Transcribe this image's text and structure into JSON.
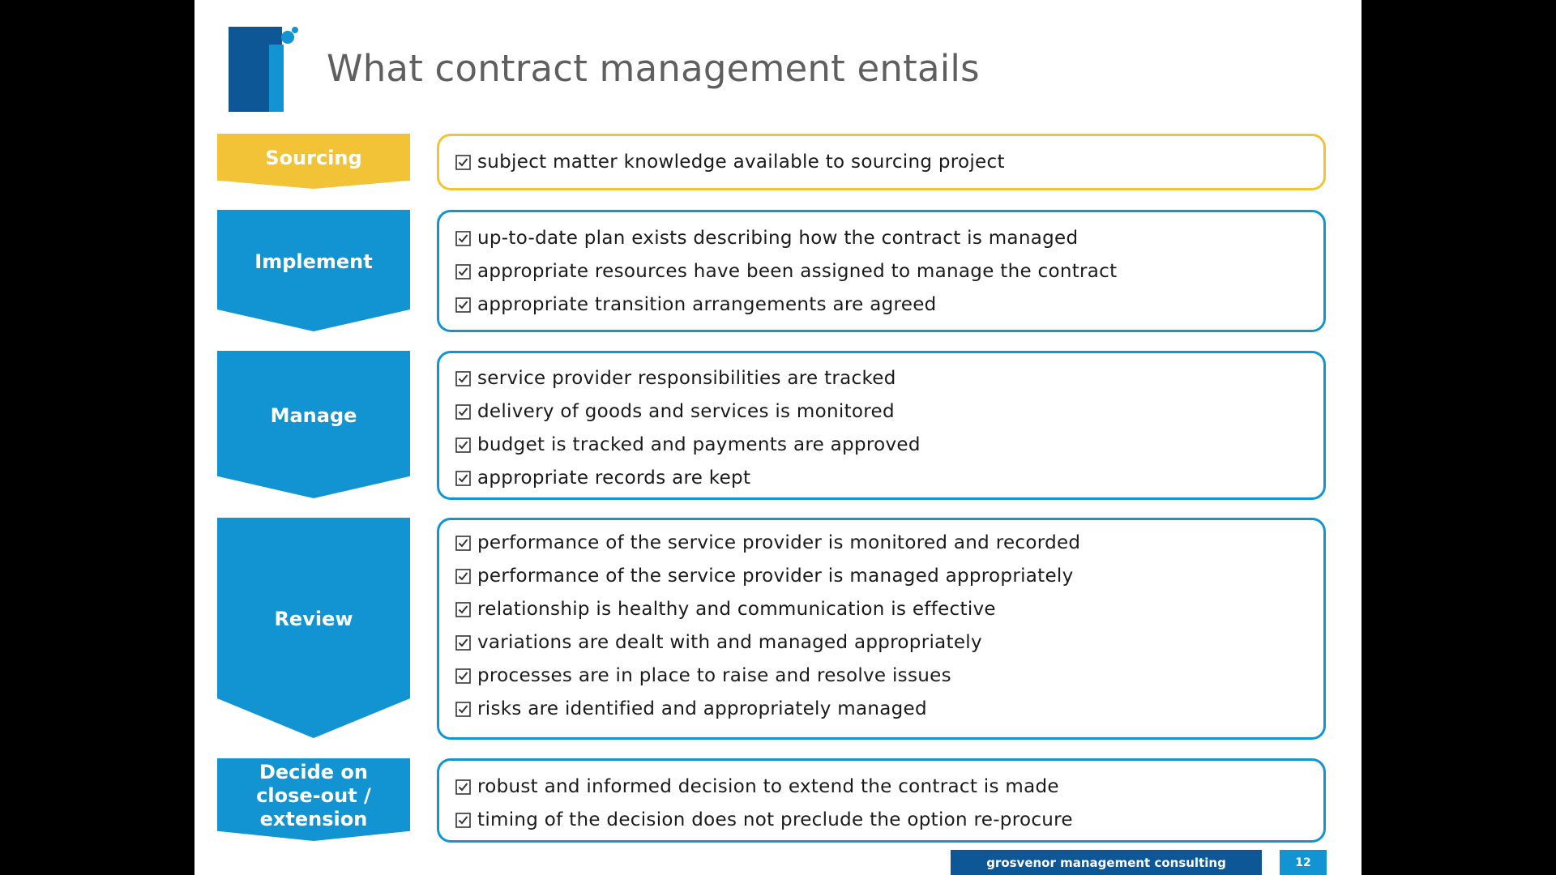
{
  "slide": {
    "title": "What contract management entails",
    "colors": {
      "accent_blue": "#1294d3",
      "accent_gold": "#f2c337",
      "footer_dark": "#0e5796"
    },
    "stages": [
      {
        "label": "Sourcing",
        "color": "#f2c337",
        "items": [
          "subject matter knowledge available to sourcing project"
        ]
      },
      {
        "label": "Implement",
        "color": "#1294d3",
        "items": [
          "up-to-date plan exists describing how the contract is managed",
          "appropriate resources have been assigned to manage the contract",
          "appropriate transition arrangements are agreed"
        ]
      },
      {
        "label": "Manage",
        "color": "#1294d3",
        "items": [
          "service provider responsibilities are tracked",
          "delivery of goods and services is monitored",
          "budget is tracked and payments are approved",
          "appropriate records are kept"
        ]
      },
      {
        "label": "Review",
        "color": "#1294d3",
        "items": [
          "performance of the service provider is monitored and recorded",
          "performance of the service provider is managed appropriately",
          "relationship is healthy and communication is effective",
          "variations are dealt with and managed appropriately",
          "processes are in place to raise and resolve issues",
          "risks are identified and appropriately managed"
        ]
      },
      {
        "label": "Decide on close-out / extension",
        "label_lines": [
          "Decide on",
          "close-out /",
          "extension"
        ],
        "color": "#1294d3",
        "items": [
          "robust and informed decision to extend the contract is made",
          "timing of the decision does not preclude the option re-procure"
        ]
      }
    ],
    "footer": {
      "company": "grosvenor management consulting",
      "page_number": "12"
    },
    "icons": {
      "logo": "logo-icon",
      "check": "checkbox-checked-icon"
    }
  }
}
